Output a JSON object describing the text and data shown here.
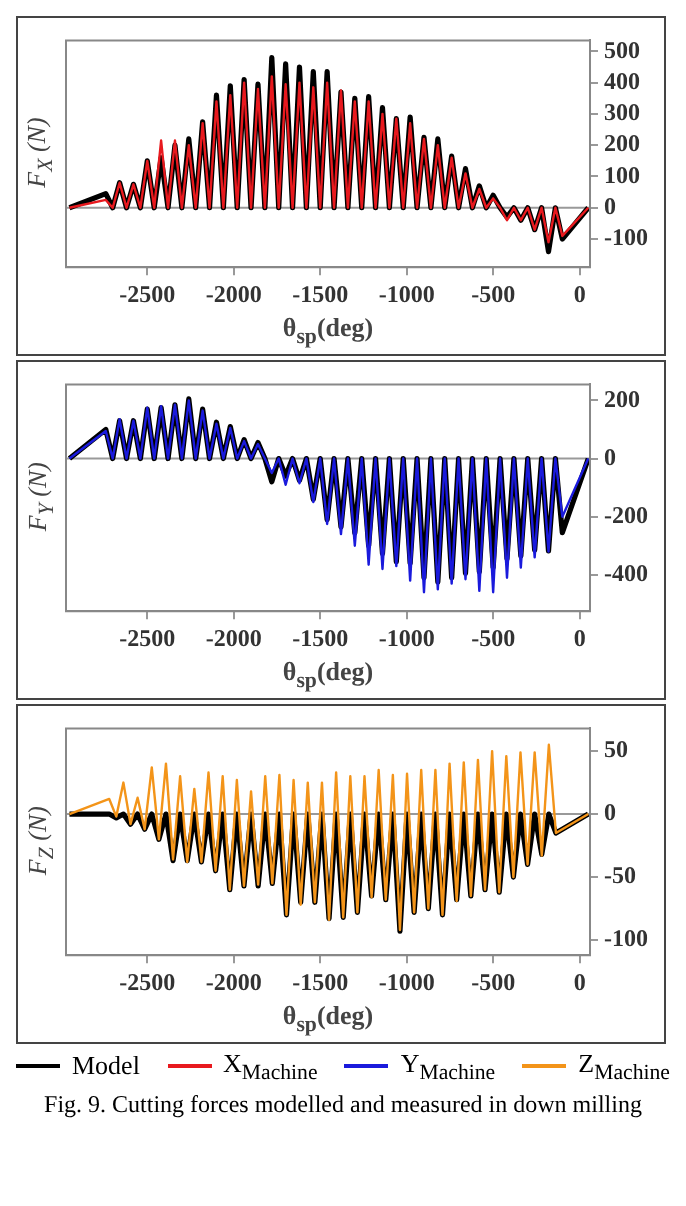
{
  "chart_data": [
    {
      "type": "line",
      "ylabel": "F$_{X}$ (N)",
      "xlabel": "θ$_{sp}$(deg)",
      "legend": "bottom",
      "marker": "none",
      "xlim": [
        -2970,
        60
      ],
      "xticks": [
        -2500,
        -2000,
        -1500,
        -1000,
        -500,
        0
      ],
      "ylim": [
        -190,
        535
      ],
      "yticks": [
        -100,
        0,
        100,
        200,
        300,
        400,
        500
      ],
      "ref_lines": [
        {
          "axis": "y",
          "value": 0,
          "color": "#999999"
        }
      ],
      "x": [
        -2950,
        -2740,
        -2700,
        -2660,
        -2620,
        -2580,
        -2540,
        -2500,
        -2460,
        -2420,
        -2380,
        -2340,
        -2300,
        -2260,
        -2220,
        -2180,
        -2140,
        -2100,
        -2060,
        -2020,
        -1980,
        -1940,
        -1900,
        -1860,
        -1820,
        -1780,
        -1740,
        -1700,
        -1660,
        -1620,
        -1580,
        -1540,
        -1500,
        -1460,
        -1420,
        -1380,
        -1340,
        -1300,
        -1260,
        -1220,
        -1180,
        -1140,
        -1100,
        -1060,
        -1020,
        -980,
        -940,
        -900,
        -860,
        -820,
        -780,
        -740,
        -700,
        -660,
        -620,
        -580,
        -540,
        -500,
        -460,
        -420,
        -380,
        -340,
        -300,
        -260,
        -220,
        -180,
        -140,
        -100,
        50
      ],
      "series": [
        {
          "name": "Model",
          "color": "#000000",
          "values": [
            0,
            45,
            0,
            80,
            0,
            75,
            0,
            150,
            0,
            160,
            0,
            200,
            0,
            220,
            0,
            275,
            0,
            360,
            0,
            390,
            0,
            410,
            0,
            395,
            0,
            480,
            0,
            460,
            0,
            450,
            0,
            435,
            0,
            435,
            0,
            370,
            0,
            350,
            0,
            355,
            0,
            320,
            0,
            285,
            0,
            290,
            0,
            225,
            0,
            220,
            0,
            165,
            0,
            125,
            0,
            70,
            0,
            40,
            0,
            -30,
            0,
            -40,
            0,
            -70,
            0,
            -140,
            0,
            -100,
            0
          ]
        },
        {
          "name": "X$_{Machine}$",
          "color": "#e8191e",
          "values": [
            0,
            25,
            0,
            80,
            0,
            75,
            0,
            150,
            0,
            215,
            0,
            215,
            0,
            200,
            0,
            270,
            0,
            340,
            0,
            360,
            0,
            400,
            0,
            380,
            0,
            420,
            0,
            395,
            0,
            400,
            0,
            385,
            0,
            400,
            0,
            375,
            0,
            340,
            0,
            340,
            0,
            300,
            0,
            285,
            0,
            270,
            0,
            220,
            0,
            200,
            0,
            160,
            0,
            110,
            0,
            60,
            0,
            30,
            0,
            -40,
            0,
            -40,
            0,
            -70,
            0,
            -110,
            0,
            -90,
            0
          ]
        }
      ]
    },
    {
      "type": "line",
      "ylabel": "F$_{Y}$ (N)",
      "xlabel": "θ$_{sp}$(deg)",
      "legend": "bottom",
      "marker": "none",
      "xlim": [
        -2970,
        60
      ],
      "xticks": [
        -2500,
        -2000,
        -1500,
        -1000,
        -500,
        0
      ],
      "ylim": [
        -525,
        255
      ],
      "yticks": [
        -400,
        -200,
        0,
        200
      ],
      "ref_lines": [
        {
          "axis": "y",
          "value": 0,
          "color": "#999999"
        }
      ],
      "x": [
        -2950,
        -2740,
        -2700,
        -2660,
        -2620,
        -2580,
        -2540,
        -2500,
        -2460,
        -2420,
        -2380,
        -2340,
        -2300,
        -2260,
        -2220,
        -2180,
        -2140,
        -2100,
        -2060,
        -2020,
        -1980,
        -1940,
        -1900,
        -1860,
        -1820,
        -1780,
        -1740,
        -1700,
        -1660,
        -1620,
        -1580,
        -1540,
        -1500,
        -1460,
        -1420,
        -1380,
        -1340,
        -1300,
        -1260,
        -1220,
        -1180,
        -1140,
        -1100,
        -1060,
        -1020,
        -980,
        -940,
        -900,
        -860,
        -820,
        -780,
        -740,
        -700,
        -660,
        -620,
        -580,
        -540,
        -500,
        -460,
        -420,
        -380,
        -340,
        -300,
        -260,
        -220,
        -180,
        -140,
        -100,
        50
      ],
      "series": [
        {
          "color": "#000000",
          "values": [
            0,
            100,
            0,
            130,
            0,
            130,
            0,
            170,
            0,
            175,
            0,
            185,
            0,
            205,
            0,
            170,
            0,
            125,
            0,
            110,
            0,
            65,
            0,
            55,
            0,
            -80,
            0,
            -60,
            0,
            -75,
            0,
            -140,
            0,
            -210,
            0,
            -235,
            0,
            -256,
            0,
            -300,
            0,
            -327,
            0,
            -355,
            0,
            -360,
            0,
            -410,
            0,
            -425,
            0,
            -410,
            0,
            -395,
            0,
            -390,
            0,
            -375,
            0,
            -345,
            0,
            -335,
            0,
            -315,
            0,
            -318,
            0,
            -255,
            0
          ]
        },
        {
          "name": "Y$_{Machine}$",
          "color": "#1a1adc",
          "values": [
            0,
            95,
            0,
            135,
            0,
            130,
            0,
            175,
            0,
            180,
            0,
            185,
            0,
            200,
            0,
            165,
            0,
            120,
            0,
            105,
            0,
            60,
            0,
            50,
            0,
            -50,
            0,
            -90,
            0,
            -85,
            0,
            -150,
            0,
            -225,
            0,
            -260,
            0,
            -300,
            0,
            -365,
            0,
            -380,
            0,
            -370,
            0,
            -420,
            0,
            -460,
            0,
            -450,
            0,
            -430,
            0,
            -415,
            0,
            -455,
            0,
            -460,
            0,
            -410,
            0,
            -375,
            0,
            -340,
            0,
            -320,
            0,
            -200,
            0
          ]
        }
      ]
    },
    {
      "type": "line",
      "ylabel": "F$_{Z}$ (N)",
      "xlabel": "θ$_{sp}$(deg)",
      "legend": "bottom",
      "marker": "none",
      "xlim": [
        -2970,
        60
      ],
      "xticks": [
        -2500,
        -2000,
        -1500,
        -1000,
        -500,
        0
      ],
      "ylim": [
        -112,
        68
      ],
      "yticks": [
        -100,
        -50,
        0,
        50
      ],
      "ref_lines": [
        {
          "axis": "y",
          "value": 0,
          "color": "#999999"
        }
      ],
      "annotations": [
        "Fig. 9. Cutting forces modelled and measured in down milling"
      ],
      "x": [
        -2950,
        -2720,
        -2679,
        -2638,
        -2597,
        -2556,
        -2515,
        -2474,
        -2433,
        -2392,
        -2351,
        -2310,
        -2269,
        -2228,
        -2187,
        -2146,
        -2105,
        -2064,
        -2023,
        -1982,
        -1941,
        -1900,
        -1859,
        -1818,
        -1777,
        -1736,
        -1695,
        -1654,
        -1613,
        -1572,
        -1531,
        -1490,
        -1449,
        -1408,
        -1367,
        -1326,
        -1285,
        -1244,
        -1203,
        -1162,
        -1121,
        -1080,
        -1039,
        -998,
        -957,
        -916,
        -875,
        -834,
        -793,
        -752,
        -711,
        -670,
        -629,
        -588,
        -547,
        -506,
        -465,
        -424,
        -383,
        -342,
        -301,
        -260,
        -219,
        -178,
        -137,
        50
      ],
      "series": [
        {
          "color": "#000000",
          "values": [
            0,
            0,
            -3,
            0,
            -8,
            0,
            -12,
            0,
            -20,
            0,
            -37,
            0,
            -37,
            0,
            -38,
            0,
            -45,
            0,
            -60,
            0,
            -57,
            0,
            -57,
            0,
            -55,
            0,
            -80,
            0,
            -70,
            0,
            -70,
            0,
            -83,
            0,
            -82,
            0,
            -78,
            0,
            -65,
            0,
            -68,
            0,
            -93,
            0,
            -78,
            0,
            -75,
            0,
            -80,
            0,
            -68,
            0,
            -65,
            0,
            -60,
            0,
            -62,
            0,
            -50,
            0,
            -40,
            0,
            -32,
            0,
            -15,
            0
          ]
        },
        {
          "name": "Z$_{Machine}$",
          "color": "#f39419",
          "values": [
            0,
            12,
            -2,
            25,
            -8,
            13,
            -12,
            37,
            -20,
            40,
            -36,
            30,
            -38,
            20,
            -38,
            33,
            -45,
            30,
            -60,
            27,
            -57,
            18,
            -56,
            30,
            -55,
            31,
            -80,
            27,
            -72,
            25,
            -70,
            25,
            -84,
            33,
            -82,
            30,
            -78,
            30,
            -66,
            35,
            -68,
            31,
            -92,
            32,
            -78,
            35,
            -75,
            35,
            -80,
            40,
            -69,
            41,
            -65,
            43,
            -60,
            50,
            -62,
            46,
            -50,
            49,
            -40,
            49,
            -33,
            55,
            -15,
            0
          ]
        }
      ]
    }
  ]
}
